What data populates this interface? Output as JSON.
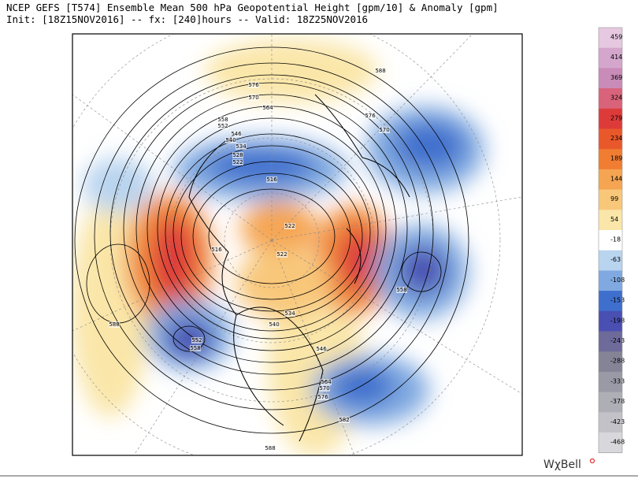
{
  "header": {
    "title_line1": "NCEP GEFS [T574] Ensemble Mean 500 hPa Geopotential Height [gpm/10] & Anomaly [gpm]",
    "title_line2": "Init: [18Z15NOV2016] -- fx: [240]hours -- Valid: 18Z25NOV2016"
  },
  "colorbar": {
    "labels": [
      459,
      414,
      369,
      324,
      279,
      234,
      189,
      144,
      99,
      54,
      -18,
      -63,
      -108,
      -153,
      -198,
      -243,
      -288,
      -333,
      -378,
      -423,
      -468
    ],
    "colors": [
      "#e6c8e0",
      "#d4a6cc",
      "#c98bb8",
      "#d8637a",
      "#dd3b3a",
      "#e9582b",
      "#f07d32",
      "#f5a552",
      "#f8c77a",
      "#fae6a8",
      "#ffffff",
      "#b9d4ef",
      "#7fa9e0",
      "#3f6fcd",
      "#4a4fb2",
      "#6e6a9a",
      "#858396",
      "#9a99a6",
      "#aeaeb6",
      "#c2c2c8",
      "#d8d8dc"
    ]
  },
  "contour_labels": [
    588,
    576,
    570,
    564,
    558,
    552,
    546,
    540,
    534,
    528,
    522,
    516,
    522,
    522,
    516,
    576,
    570,
    558,
    588,
    552,
    558,
    540,
    534,
    546,
    564,
    570,
    576,
    582,
    588
  ],
  "logo": "WχBell"
}
